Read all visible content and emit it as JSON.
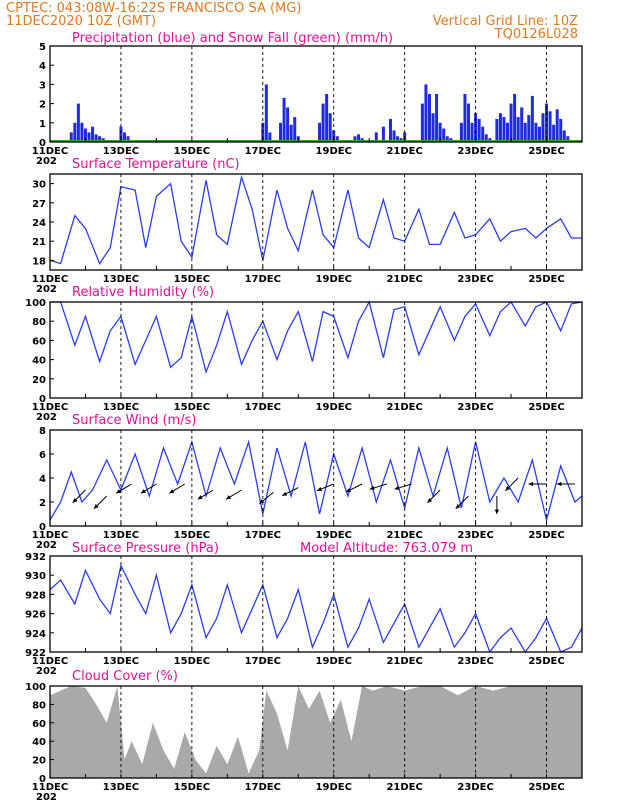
{
  "header": {
    "line1_left": "CPTEC:   043:08W-16:22S   FRANCISCO SA (MG)",
    "line2_left": "11DEC2020  10Z  (GMT)",
    "line2_right": "Vertical Grid Line: 10Z",
    "line3_right": "TQ0126L028"
  },
  "colors": {
    "header": "#e07a1f",
    "title": "#e0109a",
    "precip": "#1e2be0",
    "snow": "#22b022",
    "line": "#2a3ef0",
    "cloud": "#a9a9a9"
  },
  "x_axis": {
    "start_day": 11,
    "end_day": 26,
    "tick_labels": [
      "11DEC",
      "13DEC",
      "15DEC",
      "17DEC",
      "19DEC",
      "21DEC",
      "23DEC",
      "25DEC"
    ],
    "year_fragment": "202"
  },
  "panels": {
    "precip": {
      "title": "Precipitation (blue) and Snow Fall (green) (mm/h)",
      "ylim": [
        0,
        5
      ],
      "yticks": [
        "0",
        "1",
        "2",
        "3",
        "4",
        "5"
      ]
    },
    "temp": {
      "title": "Surface Temperature (nC)",
      "ylim": [
        16.5,
        31.5
      ],
      "yticks": [
        "18",
        "21",
        "24",
        "27",
        "30"
      ]
    },
    "rh": {
      "title": "Relative Humidity (%)",
      "ylim": [
        0,
        100
      ],
      "yticks": [
        "0",
        "20",
        "40",
        "60",
        "80",
        "100"
      ]
    },
    "wind": {
      "title": "Surface Wind (m/s)",
      "ylim": [
        0,
        8
      ],
      "yticks": [
        "0",
        "2",
        "4",
        "6",
        "8"
      ]
    },
    "pressure": {
      "title": "Surface Pressure (hPa)",
      "subtitle": "Model Altitude: 763.079 m",
      "ylim": [
        922,
        932
      ],
      "yticks": [
        "922",
        "924",
        "926",
        "928",
        "930",
        "932"
      ]
    },
    "cloud": {
      "title": "Cloud Cover (%)",
      "ylim": [
        0,
        100
      ],
      "yticks": [
        "0",
        "20",
        "40",
        "60",
        "80",
        "100"
      ]
    }
  },
  "chart_data": [
    {
      "type": "bar",
      "title": "Precipitation (blue) and Snow Fall (green) (mm/h)",
      "ylim": [
        0,
        5
      ],
      "x": [
        11.6,
        11.7,
        11.8,
        11.9,
        12.0,
        12.1,
        12.2,
        12.3,
        12.4,
        12.5,
        12.6,
        12.9,
        13.0,
        13.1,
        13.2,
        17.0,
        17.1,
        17.2,
        17.5,
        17.6,
        17.7,
        17.8,
        17.9,
        18.0,
        18.6,
        18.7,
        18.8,
        18.9,
        19.0,
        19.1,
        19.6,
        19.7,
        19.8,
        20.2,
        20.4,
        20.6,
        20.7,
        20.8,
        20.9,
        21.0,
        21.5,
        21.6,
        21.7,
        21.8,
        21.9,
        22.0,
        22.1,
        22.2,
        22.3,
        22.6,
        22.7,
        22.8,
        22.9,
        23.0,
        23.1,
        23.2,
        23.3,
        23.4,
        23.6,
        23.7,
        23.8,
        23.9,
        24.0,
        24.1,
        24.2,
        24.3,
        24.4,
        24.5,
        24.6,
        24.7,
        24.8,
        24.9,
        25.0,
        25.1,
        25.2,
        25.3,
        25.4,
        25.5,
        25.6
      ],
      "values": [
        0.5,
        1.0,
        2.0,
        1.0,
        0.7,
        0.5,
        0.8,
        0.4,
        0.3,
        0.2,
        0.1,
        0.1,
        0.8,
        0.5,
        0.3,
        1.0,
        3.0,
        0.5,
        1.0,
        2.3,
        1.8,
        0.9,
        1.3,
        0.3,
        1.0,
        2.0,
        2.5,
        1.5,
        0.6,
        0.3,
        0.3,
        0.4,
        0.2,
        0.5,
        0.8,
        1.2,
        0.6,
        0.3,
        0.2,
        0.5,
        2.0,
        3.0,
        2.5,
        1.5,
        2.5,
        1.0,
        0.7,
        0.3,
        0.2,
        1.0,
        2.5,
        2.0,
        1.0,
        1.5,
        1.2,
        0.8,
        0.4,
        0.2,
        1.2,
        1.5,
        1.3,
        1.0,
        2.0,
        2.5,
        1.3,
        1.8,
        1.0,
        1.4,
        2.4,
        1.0,
        0.8,
        1.5,
        2.0,
        1.6,
        0.9,
        1.7,
        1.2,
        0.6,
        0.3
      ]
    },
    {
      "type": "line",
      "title": "Surface Temperature (nC)",
      "ylim": [
        16.5,
        31.5
      ],
      "x": [
        11.0,
        11.3,
        11.7,
        12.0,
        12.4,
        12.7,
        13.0,
        13.4,
        13.7,
        14.0,
        14.4,
        14.7,
        15.0,
        15.4,
        15.7,
        16.0,
        16.4,
        16.7,
        17.0,
        17.4,
        17.7,
        18.0,
        18.4,
        18.7,
        19.0,
        19.4,
        19.7,
        20.0,
        20.4,
        20.7,
        21.0,
        21.4,
        21.7,
        22.0,
        22.4,
        22.7,
        23.0,
        23.4,
        23.7,
        24.0,
        24.4,
        24.7,
        25.0,
        25.4,
        25.7,
        26.0
      ],
      "values": [
        18.0,
        17.5,
        25.0,
        23.0,
        17.5,
        20.0,
        29.5,
        29.0,
        20.0,
        28.0,
        30.0,
        21.0,
        18.5,
        30.5,
        22.0,
        20.5,
        31.0,
        26.0,
        18.0,
        29.0,
        23.0,
        19.5,
        29.0,
        22.0,
        20.0,
        29.0,
        21.5,
        20.0,
        27.5,
        21.5,
        21.0,
        26.0,
        20.5,
        20.5,
        25.5,
        21.5,
        22.0,
        24.5,
        21.0,
        22.5,
        23.0,
        21.5,
        23.0,
        24.5,
        21.5,
        21.5
      ]
    },
    {
      "type": "line",
      "title": "Relative Humidity (%)",
      "ylim": [
        0,
        100
      ],
      "x": [
        11.0,
        11.3,
        11.7,
        12.0,
        12.4,
        12.7,
        13.0,
        13.4,
        13.7,
        14.0,
        14.4,
        14.7,
        15.0,
        15.4,
        15.7,
        16.0,
        16.4,
        16.7,
        17.0,
        17.4,
        17.7,
        18.0,
        18.4,
        18.7,
        19.0,
        19.4,
        19.7,
        20.0,
        20.4,
        20.7,
        21.0,
        21.4,
        21.7,
        22.0,
        22.4,
        22.7,
        23.0,
        23.4,
        23.7,
        24.0,
        24.4,
        24.7,
        25.0,
        25.4,
        25.7,
        26.0
      ],
      "values": [
        100,
        100,
        55,
        85,
        38,
        70,
        85,
        35,
        60,
        85,
        32,
        42,
        85,
        27,
        55,
        90,
        35,
        60,
        80,
        40,
        70,
        90,
        38,
        90,
        85,
        42,
        80,
        100,
        42,
        92,
        95,
        45,
        70,
        95,
        60,
        85,
        98,
        65,
        90,
        100,
        75,
        95,
        100,
        70,
        98,
        100
      ]
    },
    {
      "type": "line",
      "title": "Surface Wind (m/s)",
      "ylim": [
        0,
        8
      ],
      "x": [
        11.0,
        11.3,
        11.6,
        11.9,
        12.2,
        12.6,
        13.0,
        13.4,
        13.8,
        14.2,
        14.6,
        15.0,
        15.4,
        15.8,
        16.2,
        16.6,
        17.0,
        17.4,
        17.8,
        18.2,
        18.6,
        19.0,
        19.4,
        19.8,
        20.2,
        20.6,
        21.0,
        21.4,
        21.8,
        22.2,
        22.6,
        23.0,
        23.4,
        23.8,
        24.2,
        24.6,
        25.0,
        25.4,
        25.8,
        26.0
      ],
      "values": [
        0.5,
        2.0,
        4.5,
        2.0,
        3.0,
        5.5,
        3.0,
        6.0,
        2.5,
        6.5,
        3.5,
        7.0,
        2.5,
        6.5,
        3.5,
        7.0,
        1.0,
        6.5,
        2.5,
        7.0,
        1.0,
        6.0,
        2.5,
        6.5,
        2.0,
        5.5,
        1.5,
        6.5,
        2.5,
        6.5,
        1.5,
        7.0,
        2.0,
        4.0,
        2.0,
        5.5,
        0.5,
        5.0,
        2.0,
        2.5
      ]
    },
    {
      "type": "line",
      "title": "Surface Pressure (hPa)",
      "ylim": [
        922,
        932
      ],
      "x": [
        11.0,
        11.3,
        11.7,
        12.0,
        12.4,
        12.7,
        13.0,
        13.4,
        13.7,
        14.0,
        14.4,
        14.7,
        15.0,
        15.4,
        15.7,
        16.0,
        16.4,
        16.7,
        17.0,
        17.4,
        17.7,
        18.0,
        18.4,
        18.7,
        19.0,
        19.4,
        19.7,
        20.0,
        20.4,
        20.7,
        21.0,
        21.4,
        21.7,
        22.0,
        22.4,
        22.7,
        23.0,
        23.4,
        23.7,
        24.0,
        24.4,
        24.7,
        25.0,
        25.4,
        25.7,
        26.0
      ],
      "values": [
        928.5,
        929.5,
        927.0,
        930.5,
        927.5,
        926.0,
        931.0,
        928.0,
        926.0,
        930.0,
        924.0,
        926.0,
        929.0,
        923.5,
        925.5,
        929.0,
        924.0,
        926.5,
        929.0,
        923.5,
        925.5,
        928.5,
        922.5,
        925.0,
        928.0,
        922.5,
        924.5,
        927.5,
        923.0,
        925.0,
        927.0,
        922.5,
        924.5,
        926.5,
        922.5,
        924.0,
        926.0,
        922.0,
        923.5,
        924.5,
        922.0,
        923.5,
        925.5,
        922.0,
        922.5,
        924.5
      ]
    },
    {
      "type": "area",
      "title": "Cloud Cover (%)",
      "ylim": [
        0,
        100
      ],
      "x": [
        11.0,
        11.3,
        11.6,
        12.0,
        12.3,
        12.6,
        12.9,
        13.1,
        13.3,
        13.6,
        13.9,
        14.2,
        14.5,
        14.8,
        15.1,
        15.4,
        15.7,
        16.0,
        16.3,
        16.6,
        16.9,
        17.1,
        17.4,
        17.7,
        18.0,
        18.3,
        18.6,
        18.9,
        19.2,
        19.5,
        19.8,
        20.1,
        20.5,
        21.0,
        21.5,
        22.0,
        22.5,
        23.0,
        23.5,
        24.0,
        24.5,
        25.0,
        25.5,
        26.0
      ],
      "values": [
        90,
        95,
        100,
        98,
        80,
        60,
        100,
        20,
        40,
        15,
        60,
        30,
        10,
        50,
        20,
        5,
        35,
        15,
        45,
        5,
        30,
        95,
        70,
        30,
        100,
        75,
        95,
        60,
        85,
        40,
        100,
        95,
        100,
        95,
        100,
        100,
        90,
        100,
        95,
        100,
        100,
        100,
        100,
        100
      ]
    }
  ]
}
